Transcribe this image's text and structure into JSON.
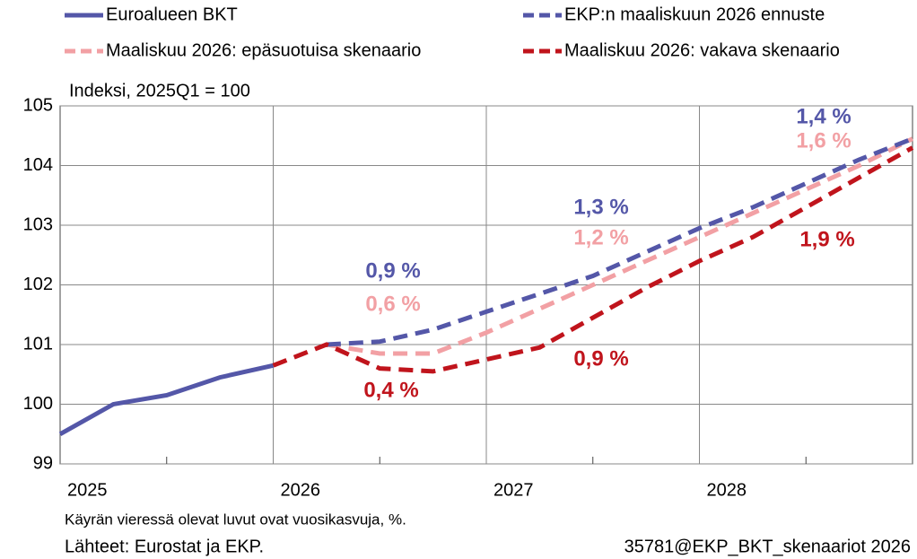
{
  "chart_data": {
    "type": "line",
    "unit_label": "Indeksi, 2025Q1 = 100",
    "x_labels": [
      "2025",
      "2026",
      "2027",
      "2028"
    ],
    "categories": [
      null,
      null,
      null,
      null,
      null,
      null,
      null,
      null,
      null,
      null,
      null,
      null,
      null,
      null,
      null,
      null,
      null
    ],
    "ylim": [
      99,
      105
    ],
    "yticks": [
      99,
      100,
      101,
      102,
      103,
      104,
      105
    ],
    "grid": true,
    "series": [
      {
        "name": "Euroalueen BKT",
        "color": "#5457a8",
        "dash": false,
        "values": [
          99.5,
          100.0,
          100.15,
          100.45,
          100.65,
          null,
          null,
          null,
          null,
          null,
          null,
          null,
          null,
          null,
          null,
          null,
          null
        ]
      },
      {
        "name": "EKP:n maaliskuun 2026 ennuste",
        "color": "#5457a8",
        "dash": true,
        "values": [
          null,
          null,
          null,
          null,
          null,
          101.0,
          101.05,
          101.25,
          101.55,
          101.85,
          102.15,
          102.55,
          102.95,
          103.3,
          103.7,
          104.1,
          104.45
        ]
      },
      {
        "name": "Maaliskuu 2026: epäsuotuisa skenaario",
        "color": "#f2a0a4",
        "dash": true,
        "values": [
          null,
          null,
          null,
          null,
          null,
          101.0,
          100.85,
          100.85,
          101.2,
          101.6,
          102.0,
          102.4,
          102.8,
          103.2,
          103.6,
          104.0,
          104.45
        ]
      },
      {
        "name": "Maaliskuu 2026: vakava skenaario",
        "color": "#c0141c",
        "dash": true,
        "values": [
          null,
          null,
          null,
          null,
          100.65,
          101.0,
          100.6,
          100.55,
          100.75,
          100.95,
          101.45,
          101.95,
          102.4,
          102.8,
          103.3,
          103.8,
          104.3
        ]
      }
    ],
    "annotations": [
      {
        "text": "0,9 %",
        "color": "#5457a8"
      },
      {
        "text": "0,6 %",
        "color": "#f2a0a4"
      },
      {
        "text": "0,4 %",
        "color": "#c0141c"
      },
      {
        "text": "1,3 %",
        "color": "#5457a8"
      },
      {
        "text": "1,2 %",
        "color": "#f2a0a4"
      },
      {
        "text": "0,9 %",
        "color": "#c0141c"
      },
      {
        "text": "1,4 %",
        "color": "#5457a8"
      },
      {
        "text": "1,6 %",
        "color": "#f2a0a4"
      },
      {
        "text": "1,9 %",
        "color": "#c0141c"
      }
    ],
    "note": "Käyrän vieressä olevat luvut ovat vuosikasvuja, %.",
    "source": "Lähteet:  Eurostat ja EKP.",
    "code": "35781@EKP_BKT_skenaariot 2026"
  }
}
